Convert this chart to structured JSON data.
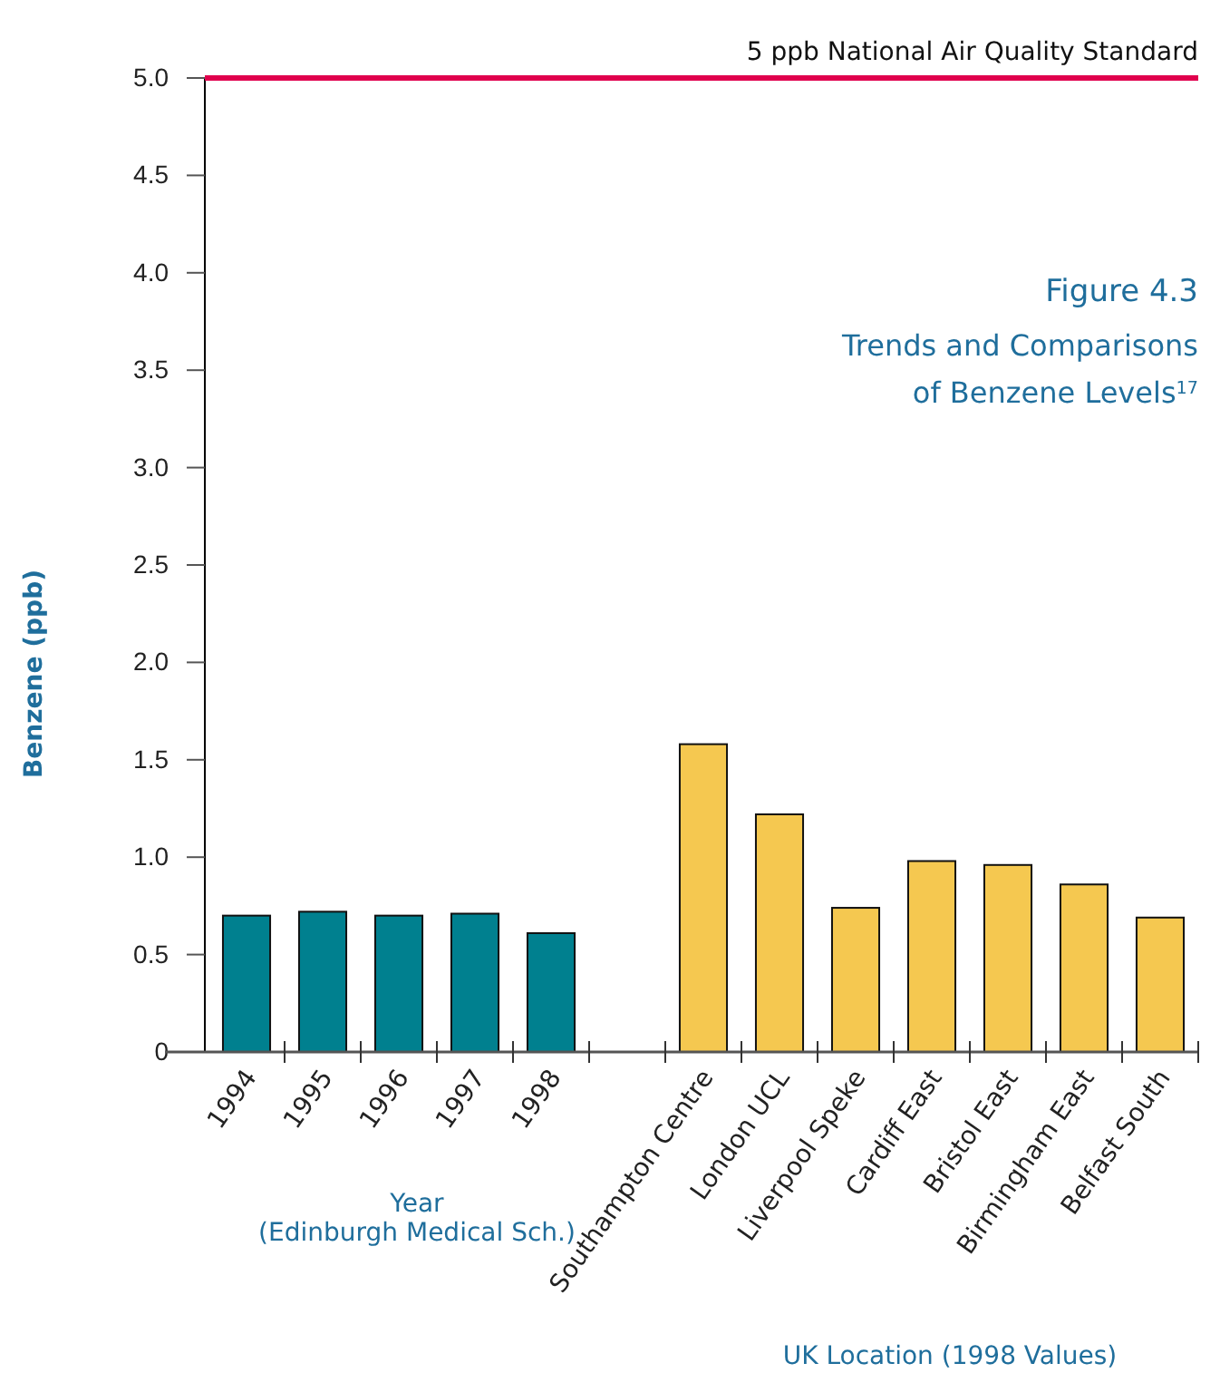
{
  "chart_data": {
    "type": "bar",
    "title": "Figure 4.3",
    "subtitle": "Trends and Comparisons of Benzene Levels$^{17}$",
    "ylabel": "Benzene (ppb)",
    "xlabel": "UK Location (1998 Values)",
    "annotations": [
      "Year\n(Edinburgh Medical Sch.)"
    ],
    "categories": [
      "1994",
      "1995",
      "1996",
      "1997",
      "1998",
      null,
      "Southampton Centre",
      "London UCL",
      "Liverpool Speke",
      "Cardiff East",
      "Bristol East",
      "Birmingham East",
      "Belfast South"
    ],
    "values": [
      0.7,
      0.72,
      0.7,
      0.71,
      0.61,
      null,
      1.58,
      1.22,
      0.74,
      0.98,
      0.96,
      0.86,
      0.69
    ],
    "colors": [
      "#00808f",
      "#00808f",
      "#00808f",
      "#00808f",
      "#00808f",
      null,
      "#f5c850",
      "#f5c850",
      "#f5c850",
      "#f5c850",
      "#f5c850",
      "#f5c850",
      "#f5c850"
    ],
    "ylim": [
      0,
      5
    ],
    "yticks": [
      0,
      0.5,
      {
        "value": 1,
        "label": "1.0"
      },
      1.5,
      {
        "value": 2,
        "label": "2.0"
      },
      2.5,
      {
        "value": 3,
        "label": "3.0"
      },
      3.5,
      {
        "value": 4,
        "label": "4.0"
      },
      4.5,
      {
        "value": 5,
        "label": "5.0"
      }
    ],
    "ref_lines": [
      {
        "axis": "y",
        "value": 5,
        "label": "5 ppb National Air Quality Standard",
        "color": "#e0004d"
      }
    ],
    "grid": false
  }
}
